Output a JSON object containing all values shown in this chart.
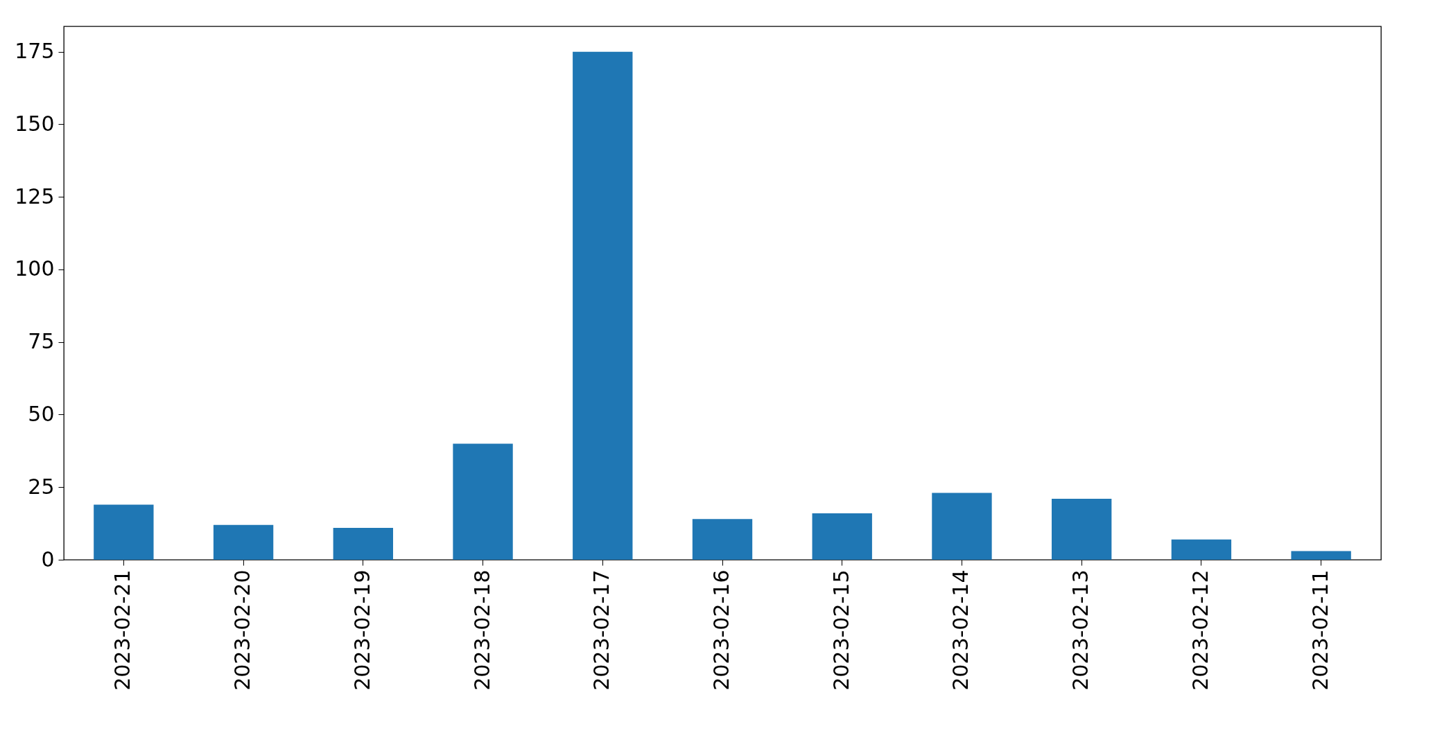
{
  "chart_data": {
    "type": "bar",
    "categories": [
      "2023-02-21",
      "2023-02-20",
      "2023-02-19",
      "2023-02-18",
      "2023-02-17",
      "2023-02-16",
      "2023-02-15",
      "2023-02-14",
      "2023-02-13",
      "2023-02-12",
      "2023-02-11"
    ],
    "values": [
      19,
      12,
      11,
      40,
      175,
      14,
      16,
      23,
      21,
      7,
      3
    ],
    "color": "#1f77b4",
    "ylim": [
      0,
      183.75
    ],
    "yticks": [
      0,
      25,
      50,
      75,
      100,
      125,
      150,
      175
    ],
    "grid": false
  }
}
